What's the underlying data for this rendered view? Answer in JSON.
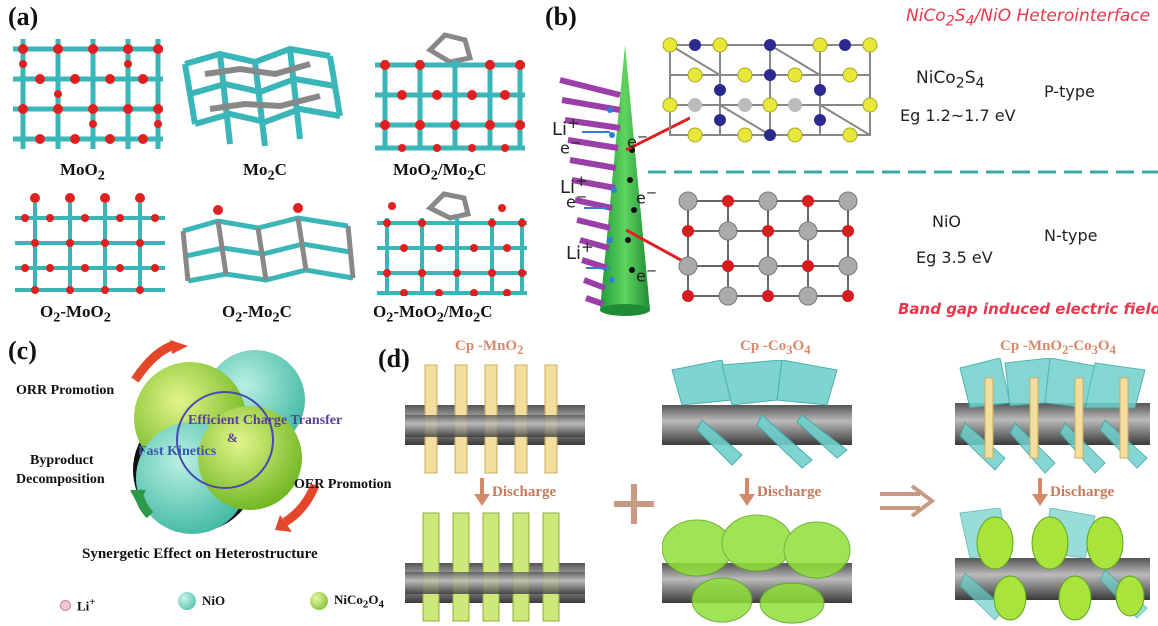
{
  "panel_a": {
    "label": "(a)",
    "captions": [
      "MoO",
      "Mo",
      "MoO",
      "O",
      "O",
      "O"
    ],
    "cap_full": {
      "c1": {
        "t1": "MoO",
        "s1": "2"
      },
      "c2": {
        "t1": "Mo",
        "s1": "2",
        "t2": "C"
      },
      "c3": {
        "t1": "MoO",
        "s1": "2",
        "t2": "/Mo",
        "s2": "2",
        "t3": "C"
      },
      "c4": {
        "t1": "O",
        "s1": "2",
        "t2": "-MoO",
        "s2": "2"
      },
      "c5": {
        "t1": "O",
        "s1": "2",
        "t2": "-Mo",
        "s2": "2",
        "t3": "C"
      },
      "c6": {
        "t1": "O",
        "s1": "2",
        "t2": "-MoO",
        "s2": "2",
        "t3": "/Mo",
        "s3": "2",
        "t4": "C"
      }
    }
  },
  "panel_b": {
    "label": "(b)",
    "title": {
      "t1": "NiCo",
      "s1": "2",
      "t2": "S",
      "s2": "4",
      "t3": "/NiO Heterointerface"
    },
    "top_material": {
      "t1": "NiCo",
      "s1": "2",
      "t2": "S",
      "s2": "4"
    },
    "top_gap": "Eg 1.2~1.7 eV",
    "top_type": "P-type",
    "bottom_material": "NiO",
    "bottom_gap": "Eg 3.5 eV",
    "bottom_type": "N-type",
    "field_note": "Band gap induced electric field",
    "li": "Li",
    "li_sup": "+",
    "e": "e",
    "e_sup": "−"
  },
  "panel_c": {
    "label": "(c)",
    "orr": "ORR Promotion",
    "byproduct_1": "Byproduct",
    "byproduct_2": "Decomposition",
    "oer": "OER Promotion",
    "center_1": "Efficient Charge Transfer",
    "center_amp": "&",
    "center_2": "Fast Kinetics",
    "bottom": "Synergetic Effect on Heterostructure",
    "legend": [
      {
        "t1": "Li",
        "sup": "+",
        "color": "#f0c6d8"
      },
      {
        "t1": "NiO",
        "color": "#5cc9b0"
      },
      {
        "t1": "NiCo",
        "s1": "2",
        "t2": "O",
        "s2": "4",
        "color": "#9bd23c"
      }
    ]
  },
  "panel_d": {
    "label": "(d)",
    "t1": {
      "a": "Cp -MnO",
      "s": "2"
    },
    "t2": {
      "a": "Cp -Co",
      "s1": "3",
      "b": "O",
      "s2": "4"
    },
    "t3": {
      "a": "Cp -MnO",
      "s1": "2",
      "b": "-Co",
      "s2": "3",
      "c": "O",
      "s3": "4"
    },
    "discharge": "Discharge"
  }
}
